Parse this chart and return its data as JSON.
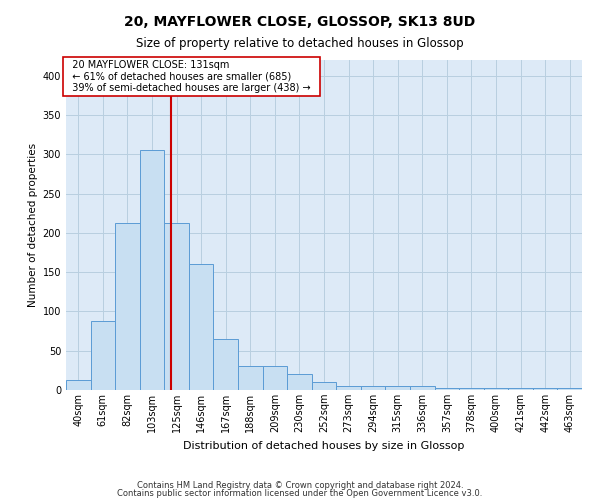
{
  "title": "20, MAYFLOWER CLOSE, GLOSSOP, SK13 8UD",
  "subtitle": "Size of property relative to detached houses in Glossop",
  "xlabel": "Distribution of detached houses by size in Glossop",
  "ylabel": "Number of detached properties",
  "footer_line1": "Contains HM Land Registry data © Crown copyright and database right 2024.",
  "footer_line2": "Contains public sector information licensed under the Open Government Licence v3.0.",
  "annotation_line1": "20 MAYFLOWER CLOSE: 131sqm",
  "annotation_line2": "← 61% of detached houses are smaller (685)",
  "annotation_line3": "39% of semi-detached houses are larger (438) →",
  "categories": [
    "40sqm",
    "61sqm",
    "82sqm",
    "103sqm",
    "125sqm",
    "146sqm",
    "167sqm",
    "188sqm",
    "209sqm",
    "230sqm",
    "252sqm",
    "273sqm",
    "294sqm",
    "315sqm",
    "336sqm",
    "357sqm",
    "378sqm",
    "400sqm",
    "421sqm",
    "442sqm",
    "463sqm"
  ],
  "values": [
    13,
    88,
    212,
    305,
    212,
    160,
    65,
    30,
    30,
    20,
    10,
    5,
    5,
    5,
    5,
    3,
    3,
    3,
    3,
    3,
    2
  ],
  "num_bins": 21,
  "bar_color": "#c8dff2",
  "bar_edge_color": "#5b9bd5",
  "vline_color": "#cc0000",
  "vline_bin_index": 4,
  "grid_color": "#b8cfe0",
  "bg_color": "#ddeaf7",
  "annotation_box_facecolor": "#ffffff",
  "annotation_box_edgecolor": "#cc0000",
  "ylim": [
    0,
    420
  ],
  "yticks": [
    0,
    50,
    100,
    150,
    200,
    250,
    300,
    350,
    400
  ],
  "title_fontsize": 10,
  "subtitle_fontsize": 8.5,
  "xlabel_fontsize": 8,
  "ylabel_fontsize": 7.5,
  "tick_fontsize": 7,
  "annotation_fontsize": 7,
  "footer_fontsize": 6
}
